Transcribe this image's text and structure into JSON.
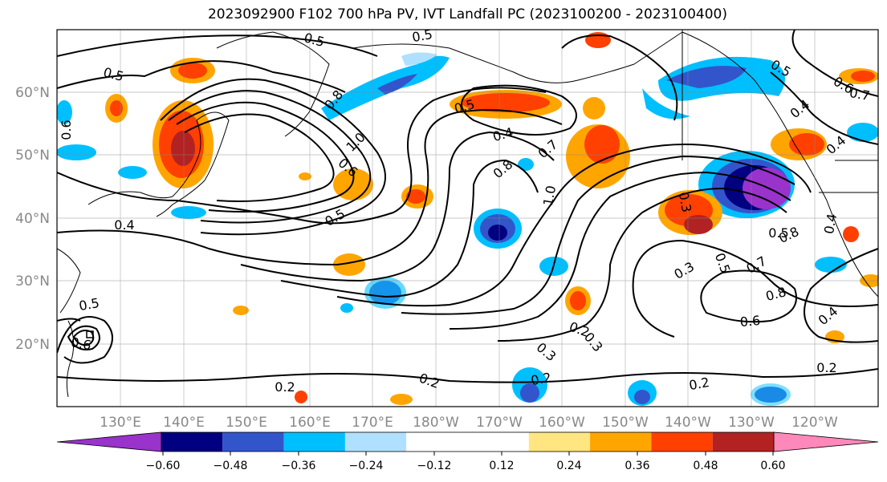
{
  "title": "2023092900 F102 700 hPa PV, IVT Landfall PC (2023100200 - 2023100400)",
  "map": {
    "lon_labels": [
      "130°E",
      "140°E",
      "150°E",
      "160°E",
      "170°E",
      "180°W",
      "170°W",
      "160°W",
      "150°W",
      "140°W",
      "130°W",
      "120°W"
    ],
    "lat_labels": [
      "60°N",
      "50°N",
      "40°N",
      "30°N",
      "20°N"
    ],
    "contour_labels": [
      "0.5",
      "0.5",
      "0.5",
      "0.8",
      "1.0",
      "0.6",
      "0.5",
      "0.4",
      "0.5",
      "0.4",
      "0.7",
      "0.8",
      "1.0",
      "0.3",
      "0.3",
      "0.5",
      "0.7",
      "0.8",
      "0.6",
      "0.4",
      "0.2",
      "0.3",
      "0.2",
      "0.2",
      "0.2",
      "0.2",
      "0.2",
      "0.4",
      "0.6",
      "0.7",
      "0.5",
      "0.4",
      "0.5",
      "0.6",
      "0.6",
      "0.4",
      "0.3",
      "0.5",
      "0.8"
    ]
  },
  "colorbar": {
    "colors": [
      "#9933cc",
      "#000080",
      "#3355cc",
      "#00bfff",
      "#b0e0ff",
      "#ffffff",
      "#ffffff",
      "#ffe680",
      "#ffa500",
      "#ff4000",
      "#b22222",
      "#ff88bb"
    ],
    "tick_labels": [
      "−0.60",
      "−0.48",
      "−0.36",
      "−0.24",
      "−0.12",
      "0.12",
      "0.24",
      "0.36",
      "0.48",
      "0.60"
    ]
  }
}
